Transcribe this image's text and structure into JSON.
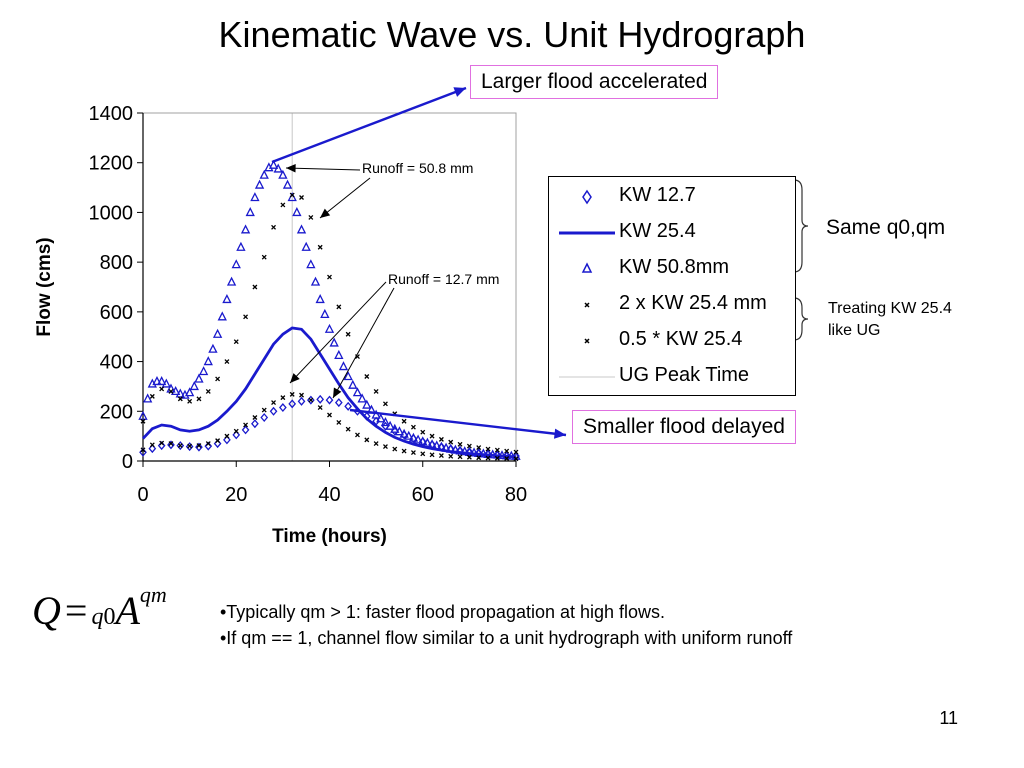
{
  "slide": {
    "title": "Kinematic Wave vs. Unit Hydrograph",
    "page_number": "11"
  },
  "callouts": {
    "larger": "Larger flood accelerated",
    "smaller": "Smaller flood delayed",
    "runoff_50": "Runoff = 50.8 mm",
    "runoff_12": "Runoff = 12.7 mm",
    "same_q0qm": "Same q0,qm",
    "treating_line1": "Treating KW 25.4",
    "treating_line2": "like UG"
  },
  "formula": {
    "lhs": "Q",
    "eq": "=",
    "coef": "q",
    "coef_sub": "0",
    "var": "A",
    "exp": "qm"
  },
  "bullets": [
    "•Typically qm > 1: faster flood propagation at high flows.",
    "•If qm == 1, channel flow similar to a unit hydrograph with uniform runoff"
  ],
  "colors": {
    "kw": "#1a1acd",
    "black": "#000000",
    "ug_line": "#c8c8c8",
    "callout_border": "#e070e0"
  },
  "chart_data": {
    "type": "line",
    "xlabel": "Time (hours)",
    "ylabel": "Flow (cms)",
    "xlim": [
      0,
      80
    ],
    "ylim": [
      0,
      1400
    ],
    "xticks": [
      0,
      20,
      40,
      60,
      80
    ],
    "yticks": [
      0,
      200,
      400,
      600,
      800,
      1000,
      1200,
      1400
    ],
    "grid": false,
    "legend_position": "right",
    "ug_peak_time": 32,
    "series": [
      {
        "name": "KW 12.7",
        "marker": "diamond",
        "x": [
          0,
          2,
          4,
          6,
          8,
          10,
          12,
          14,
          16,
          18,
          20,
          22,
          24,
          26,
          28,
          30,
          32,
          34,
          36,
          38,
          40,
          42,
          44,
          46,
          48,
          50,
          52,
          54,
          56,
          58,
          60,
          62,
          64,
          66,
          68,
          70,
          72,
          74,
          76,
          78,
          80
        ],
        "y": [
          35,
          50,
          62,
          65,
          62,
          58,
          56,
          60,
          70,
          85,
          105,
          125,
          150,
          175,
          200,
          215,
          230,
          240,
          245,
          248,
          245,
          235,
          220,
          200,
          180,
          160,
          140,
          120,
          105,
          90,
          78,
          66,
          57,
          49,
          42,
          37,
          32,
          28,
          25,
          22,
          20
        ]
      },
      {
        "name": "KW 25.4",
        "marker": "line",
        "x": [
          0,
          2,
          4,
          6,
          8,
          10,
          12,
          14,
          16,
          18,
          20,
          22,
          24,
          26,
          28,
          30,
          32,
          34,
          36,
          38,
          40,
          42,
          44,
          46,
          48,
          50,
          52,
          54,
          56,
          58,
          60,
          62,
          64,
          66,
          68,
          70,
          72,
          74,
          76,
          78,
          80
        ],
        "y": [
          90,
          130,
          145,
          140,
          125,
          120,
          125,
          140,
          165,
          200,
          240,
          290,
          350,
          410,
          470,
          510,
          535,
          530,
          490,
          430,
          370,
          310,
          255,
          210,
          170,
          140,
          115,
          95,
          80,
          68,
          58,
          50,
          44,
          38,
          34,
          30,
          27,
          24,
          21,
          19,
          17
        ]
      },
      {
        "name": "KW 50.8mm",
        "marker": "triangle",
        "x": [
          0,
          1,
          2,
          3,
          4,
          5,
          6,
          7,
          8,
          9,
          10,
          11,
          12,
          13,
          14,
          15,
          16,
          17,
          18,
          19,
          20,
          21,
          22,
          23,
          24,
          25,
          26,
          27,
          28,
          29,
          30,
          31,
          32,
          33,
          34,
          35,
          36,
          37,
          38,
          39,
          40,
          41,
          42,
          43,
          44,
          45,
          46,
          47,
          48,
          49,
          50,
          51,
          52,
          53,
          54,
          55,
          56,
          57,
          58,
          59,
          60,
          61,
          62,
          63,
          64,
          65,
          66,
          67,
          68,
          69,
          70,
          71,
          72,
          73,
          74,
          75,
          76,
          77,
          78,
          79,
          80
        ],
        "y": [
          180,
          250,
          310,
          320,
          320,
          310,
          290,
          280,
          270,
          265,
          275,
          300,
          330,
          360,
          400,
          450,
          510,
          580,
          650,
          720,
          790,
          860,
          930,
          1000,
          1060,
          1110,
          1150,
          1180,
          1190,
          1175,
          1150,
          1110,
          1060,
          1000,
          930,
          860,
          790,
          720,
          650,
          590,
          530,
          475,
          425,
          380,
          340,
          305,
          275,
          250,
          225,
          205,
          185,
          170,
          155,
          140,
          128,
          118,
          108,
          100,
          92,
          85,
          78,
          72,
          66,
          61,
          56,
          52,
          48,
          44,
          41,
          38,
          35,
          33,
          31,
          29,
          27,
          25,
          24,
          22,
          21,
          20,
          19
        ]
      },
      {
        "name": "2 x KW 25.4 mm",
        "marker": "cross",
        "x": [
          0,
          2,
          4,
          6,
          8,
          10,
          12,
          14,
          16,
          18,
          20,
          22,
          24,
          26,
          28,
          30,
          32,
          34,
          36,
          38,
          40,
          42,
          44,
          46,
          48,
          50,
          52,
          54,
          56,
          58,
          60,
          62,
          64,
          66,
          68,
          70,
          72,
          74,
          76,
          78,
          80
        ],
        "y": [
          160,
          260,
          290,
          280,
          250,
          240,
          250,
          280,
          330,
          400,
          480,
          580,
          700,
          820,
          940,
          1030,
          1070,
          1060,
          980,
          860,
          740,
          620,
          510,
          420,
          340,
          280,
          230,
          190,
          160,
          136,
          116,
          100,
          87,
          76,
          67,
          60,
          54,
          48,
          44,
          40,
          36
        ]
      },
      {
        "name": "0.5 * KW 25.4",
        "marker": "cross",
        "x": [
          0,
          2,
          4,
          6,
          8,
          10,
          12,
          14,
          16,
          18,
          20,
          22,
          24,
          26,
          28,
          30,
          32,
          34,
          36,
          38,
          40,
          42,
          44,
          46,
          48,
          50,
          52,
          54,
          56,
          58,
          60,
          62,
          64,
          66,
          68,
          70,
          72,
          74,
          76,
          78,
          80
        ],
        "y": [
          45,
          65,
          72,
          70,
          62,
          60,
          62,
          70,
          82,
          100,
          120,
          145,
          175,
          205,
          235,
          255,
          268,
          265,
          245,
          215,
          185,
          155,
          128,
          105,
          85,
          70,
          58,
          48,
          40,
          34,
          29,
          25,
          22,
          19,
          17,
          15,
          13,
          12,
          11,
          10,
          9
        ]
      },
      {
        "name": "UG Peak Time",
        "marker": "vline",
        "x": [
          32,
          32
        ],
        "y": [
          0,
          1400
        ]
      }
    ]
  }
}
